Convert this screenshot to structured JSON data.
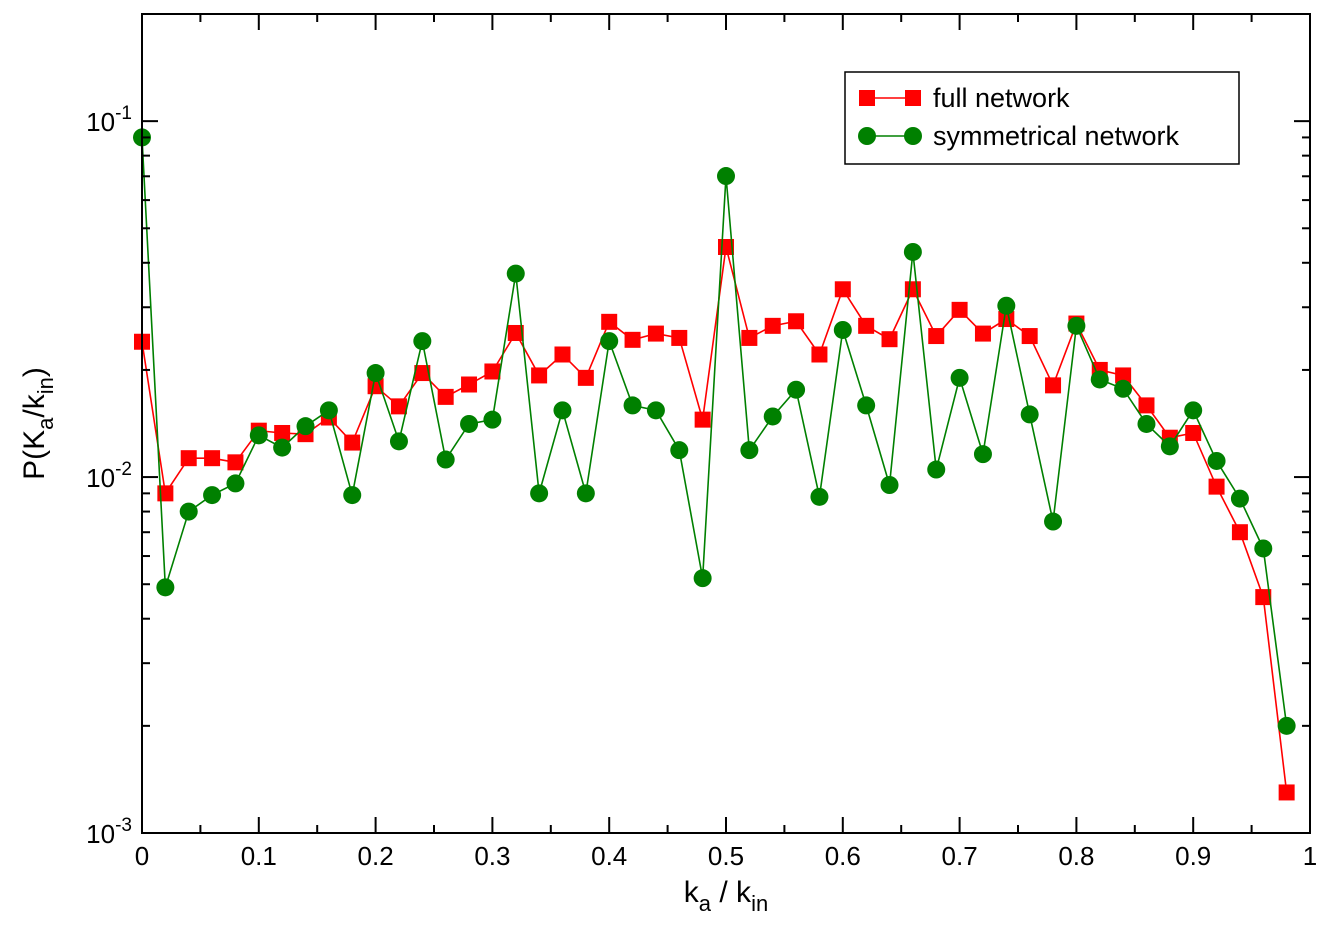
{
  "chart_data": {
    "type": "line",
    "xlabel": {
      "main": "k",
      "sub1": "a",
      "sep": " / k",
      "sub2": "in"
    },
    "ylabel": {
      "pre": "P(K",
      "sub1": "a",
      "mid": "/k",
      "sub2": "in",
      "post": ")"
    },
    "xlim": [
      0,
      1
    ],
    "ylim": [
      0.001,
      0.2
    ],
    "yscale": "log",
    "x_ticks": [
      0,
      0.1,
      0.2,
      0.3,
      0.4,
      0.5,
      0.6,
      0.7,
      0.8,
      0.9,
      1
    ],
    "x_tick_labels": [
      "0",
      "0.1",
      "0.2",
      "0.3",
      "0.4",
      "0.5",
      "0.6",
      "0.7",
      "0.8",
      "0.9",
      "1"
    ],
    "y_ticks": [
      {
        "value": 0.001,
        "base": "10",
        "exp": "-3"
      },
      {
        "value": 0.01,
        "base": "10",
        "exp": "-2"
      },
      {
        "value": 0.1,
        "base": "10",
        "exp": "-1"
      }
    ],
    "grid": false,
    "legend_position": "top-right",
    "series": [
      {
        "name": "full network",
        "color": "#ff0000",
        "marker": "square",
        "x": [
          0,
          0.02,
          0.04,
          0.06,
          0.08,
          0.1,
          0.12,
          0.14,
          0.16,
          0.18,
          0.2,
          0.22,
          0.24,
          0.26,
          0.28,
          0.3,
          0.32,
          0.34,
          0.36,
          0.38,
          0.4,
          0.42,
          0.44,
          0.46,
          0.48,
          0.5,
          0.52,
          0.54,
          0.56,
          0.58,
          0.6,
          0.62,
          0.64,
          0.66,
          0.68,
          0.7,
          0.72,
          0.74,
          0.76,
          0.78,
          0.8,
          0.82,
          0.84,
          0.86,
          0.88,
          0.9,
          0.92,
          0.94,
          0.96,
          0.98
        ],
        "y": [
          0.024,
          0.009,
          0.0113,
          0.0113,
          0.011,
          0.0135,
          0.0133,
          0.0132,
          0.0147,
          0.0125,
          0.018,
          0.0158,
          0.0196,
          0.0168,
          0.0182,
          0.0198,
          0.0254,
          0.0193,
          0.0221,
          0.019,
          0.0273,
          0.0243,
          0.0253,
          0.0246,
          0.0145,
          0.0443,
          0.0246,
          0.0266,
          0.0274,
          0.0221,
          0.0337,
          0.0266,
          0.0244,
          0.0337,
          0.0249,
          0.0295,
          0.0253,
          0.0278,
          0.0249,
          0.0181,
          0.027,
          0.02,
          0.0193,
          0.0159,
          0.0129,
          0.0133,
          0.0094,
          0.007,
          0.0046,
          0.0013
        ]
      },
      {
        "name": "symmetrical network",
        "color": "#008000",
        "marker": "circle",
        "x": [
          0,
          0.02,
          0.04,
          0.06,
          0.08,
          0.1,
          0.12,
          0.14,
          0.16,
          0.18,
          0.2,
          0.22,
          0.24,
          0.26,
          0.28,
          0.3,
          0.32,
          0.34,
          0.36,
          0.38,
          0.4,
          0.42,
          0.44,
          0.46,
          0.48,
          0.5,
          0.52,
          0.54,
          0.56,
          0.58,
          0.6,
          0.62,
          0.64,
          0.66,
          0.68,
          0.7,
          0.72,
          0.74,
          0.76,
          0.78,
          0.8,
          0.82,
          0.84,
          0.86,
          0.88,
          0.9,
          0.92,
          0.94,
          0.96,
          0.98
        ],
        "y": [
          0.09,
          0.0049,
          0.008,
          0.0089,
          0.0096,
          0.0131,
          0.0121,
          0.0139,
          0.0154,
          0.0089,
          0.0196,
          0.0126,
          0.0241,
          0.0112,
          0.0141,
          0.0145,
          0.0373,
          0.009,
          0.0154,
          0.009,
          0.0241,
          0.0159,
          0.0154,
          0.0119,
          0.0052,
          0.0701,
          0.0119,
          0.0148,
          0.0176,
          0.0088,
          0.0259,
          0.0159,
          0.0095,
          0.0429,
          0.0105,
          0.019,
          0.0116,
          0.0303,
          0.015,
          0.0075,
          0.0266,
          0.0188,
          0.0177,
          0.0141,
          0.0122,
          0.0154,
          0.0111,
          0.0087,
          0.0063,
          0.002
        ]
      }
    ]
  }
}
